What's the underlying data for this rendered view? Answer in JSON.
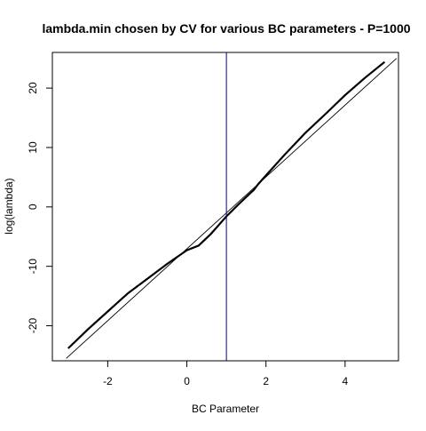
{
  "chart_data": {
    "type": "line",
    "title": "lambda.min chosen by CV for various BC parameters - P=1000",
    "xlabel": "BC Parameter",
    "ylabel": "log(lambda)",
    "xlim": [
      -3.4,
      5.35
    ],
    "ylim": [
      -25.9,
      26.0
    ],
    "x_ticks": [
      -2,
      0,
      2,
      4
    ],
    "y_ticks": [
      -20,
      -10,
      0,
      10,
      20
    ],
    "grid": false,
    "legend": "none",
    "series": [
      {
        "style": "thick-black",
        "x": [
          -3.0,
          -2.5,
          -2.0,
          -1.5,
          -1.0,
          -0.5,
          0.0,
          0.3,
          0.6,
          1.0,
          1.3,
          1.6,
          1.7,
          1.8,
          2.0,
          2.5,
          3.0,
          3.5,
          4.0,
          4.5,
          5.0
        ],
        "y": [
          -23.8,
          -20.6,
          -17.6,
          -14.6,
          -12.1,
          -9.6,
          -7.3,
          -6.5,
          -4.6,
          -1.6,
          0.4,
          2.3,
          2.9,
          3.8,
          5.3,
          9.0,
          12.5,
          15.6,
          18.8,
          21.7,
          24.4
        ]
      },
      {
        "style": "thin-black",
        "x": [
          -3.05,
          5.3
        ],
        "y": [
          -25.5,
          25.0
        ]
      }
    ],
    "vline": {
      "x": 1.0,
      "color": "#00008b"
    }
  }
}
